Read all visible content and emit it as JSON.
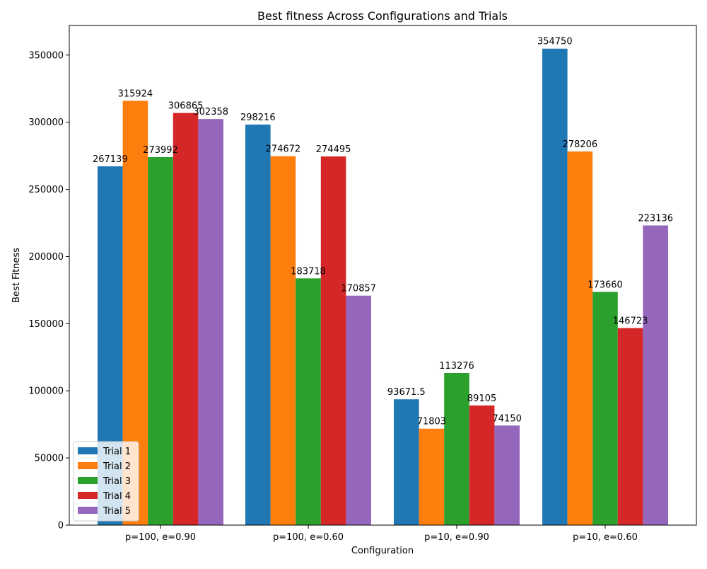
{
  "chart_data": {
    "type": "bar",
    "title": "Best fitness Across Configurations and Trials",
    "xlabel": "Configuration",
    "ylabel": "Best Fitness",
    "categories": [
      "p=100, e=0.90",
      "p=100, e=0.60",
      "p=10, e=0.90",
      "p=10, e=0.60"
    ],
    "series": [
      {
        "name": "Trial 1",
        "color": "#1f77b4",
        "values": [
          267139,
          298216,
          93671.5,
          354750
        ],
        "labels": [
          "267139",
          "298216",
          "93671.5",
          "354750"
        ]
      },
      {
        "name": "Trial 2",
        "color": "#ff7f0e",
        "values": [
          315924,
          274672,
          71803,
          278206
        ],
        "labels": [
          "315924",
          "274672",
          "71803",
          "278206"
        ]
      },
      {
        "name": "Trial 3",
        "color": "#2ca02c",
        "values": [
          273992,
          183718,
          113276,
          173660
        ],
        "labels": [
          "273992",
          "183718",
          "113276",
          "173660"
        ]
      },
      {
        "name": "Trial 4",
        "color": "#d62728",
        "values": [
          306865,
          274495,
          89105,
          146723
        ],
        "labels": [
          "306865",
          "274495",
          "89105",
          "146723"
        ]
      },
      {
        "name": "Trial 5",
        "color": "#9467bd",
        "values": [
          302358,
          170857,
          74150,
          223136
        ],
        "labels": [
          "302358",
          "170857",
          "74150",
          "223136"
        ]
      }
    ],
    "ylim": [
      0,
      372000
    ],
    "yticks": [
      0,
      50000,
      100000,
      150000,
      200000,
      250000,
      300000,
      350000
    ],
    "ytick_labels": [
      "0",
      "50000",
      "100000",
      "150000",
      "200000",
      "250000",
      "300000",
      "350000"
    ],
    "legend_position": "lower-left",
    "grid": false
  }
}
